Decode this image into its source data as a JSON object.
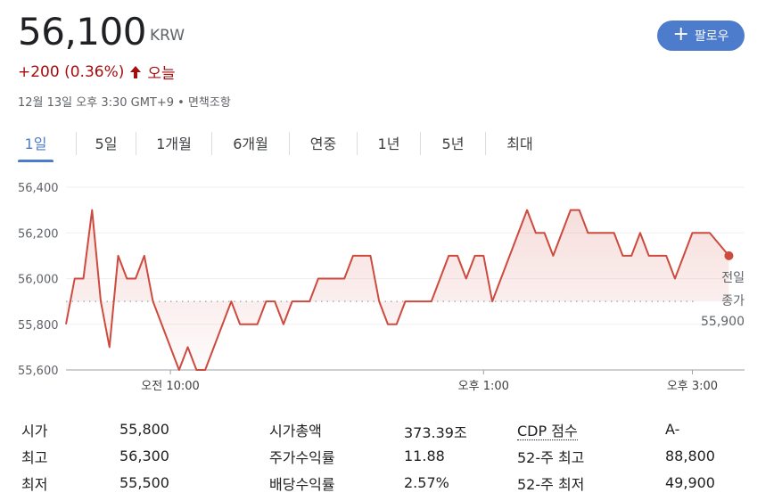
{
  "header": {
    "price": "56,100",
    "currency": "KRW",
    "change": "+200 (0.36%)",
    "change_period": "오늘",
    "meta": "12월 13일 오후 3:30 GMT+9 • 면책조항",
    "follow_label": "팔로우",
    "accent_color": "#4e7ccd",
    "change_color": "#a50e0e"
  },
  "tabs": [
    {
      "label": "1일",
      "active": true
    },
    {
      "label": "5일",
      "active": false
    },
    {
      "label": "1개월",
      "active": false
    },
    {
      "label": "6개월",
      "active": false
    },
    {
      "label": "연중",
      "active": false
    },
    {
      "label": "1년",
      "active": false
    },
    {
      "label": "5년",
      "active": false
    },
    {
      "label": "최대",
      "active": false
    }
  ],
  "chart_data": {
    "type": "line",
    "title": "",
    "xlabel": "",
    "ylabel": "",
    "ylim": [
      55600,
      56400
    ],
    "yticks": [
      "56,400",
      "56,200",
      "56,000",
      "55,800",
      "55,600"
    ],
    "yvalues": [
      56400,
      56200,
      56000,
      55800,
      55600
    ],
    "xticks": [
      "오전 10:00",
      "오후 1:00",
      "오후 3:00"
    ],
    "xtick_minutes": [
      600,
      780,
      900
    ],
    "xlim_minutes": [
      540,
      930
    ],
    "grid": true,
    "line_color": "#cd4a3e",
    "previous_close": 55900,
    "previous_close_label": [
      "전일",
      "종가",
      "55,900"
    ],
    "series": [
      {
        "minutes": [
          540,
          545,
          550,
          555,
          560,
          565,
          570,
          575,
          580,
          585,
          590,
          595,
          600,
          605,
          610,
          615,
          620,
          625,
          630,
          635,
          640,
          645,
          650,
          655,
          660,
          665,
          670,
          675,
          680,
          685,
          690,
          695,
          700,
          705,
          710,
          715,
          720,
          725,
          730,
          735,
          740,
          745,
          750,
          755,
          760,
          765,
          770,
          775,
          780,
          785,
          790,
          795,
          800,
          805,
          810,
          815,
          820,
          825,
          830,
          835,
          840,
          845,
          850,
          855,
          860,
          865,
          870,
          875,
          880,
          885,
          890,
          895,
          900,
          905,
          910
        ],
        "values": [
          55800,
          56000,
          56000,
          56300,
          55900,
          55700,
          56100,
          56000,
          56000,
          56100,
          55900,
          55800,
          55700,
          55600,
          55700,
          55600,
          55600,
          55700,
          55800,
          55900,
          55800,
          55800,
          55800,
          55900,
          55900,
          55800,
          55900,
          55900,
          55900,
          56000,
          56000,
          56000,
          56000,
          56100,
          56100,
          56100,
          55900,
          55800,
          55800,
          55900,
          55900,
          55900,
          55900,
          56000,
          56100,
          56100,
          56000,
          56100,
          56100,
          55900,
          56000,
          56100,
          56200,
          56300,
          56200,
          56200,
          56100,
          56200,
          56300,
          56300,
          56200,
          56200,
          56200,
          56200,
          56100,
          56100,
          56200,
          56100,
          56100,
          56100,
          56000,
          56100,
          56200,
          56200,
          56200
        ]
      }
    ],
    "last_point": {
      "minute": 921,
      "value": 56100
    }
  },
  "stats": {
    "col1": [
      {
        "label": "시가",
        "value": "55,800"
      },
      {
        "label": "최고",
        "value": "56,300"
      },
      {
        "label": "최저",
        "value": "55,500"
      }
    ],
    "col2": [
      {
        "label": "시가총액",
        "value": "373.39조"
      },
      {
        "label": "주가수익률",
        "value": "11.88"
      },
      {
        "label": "배당수익률",
        "value": "2.57%"
      }
    ],
    "col3": [
      {
        "label": "CDP 점수",
        "value": "A-"
      },
      {
        "label": "52-주 최고",
        "value": "88,800"
      },
      {
        "label": "52-주 최저",
        "value": "49,900"
      }
    ]
  }
}
